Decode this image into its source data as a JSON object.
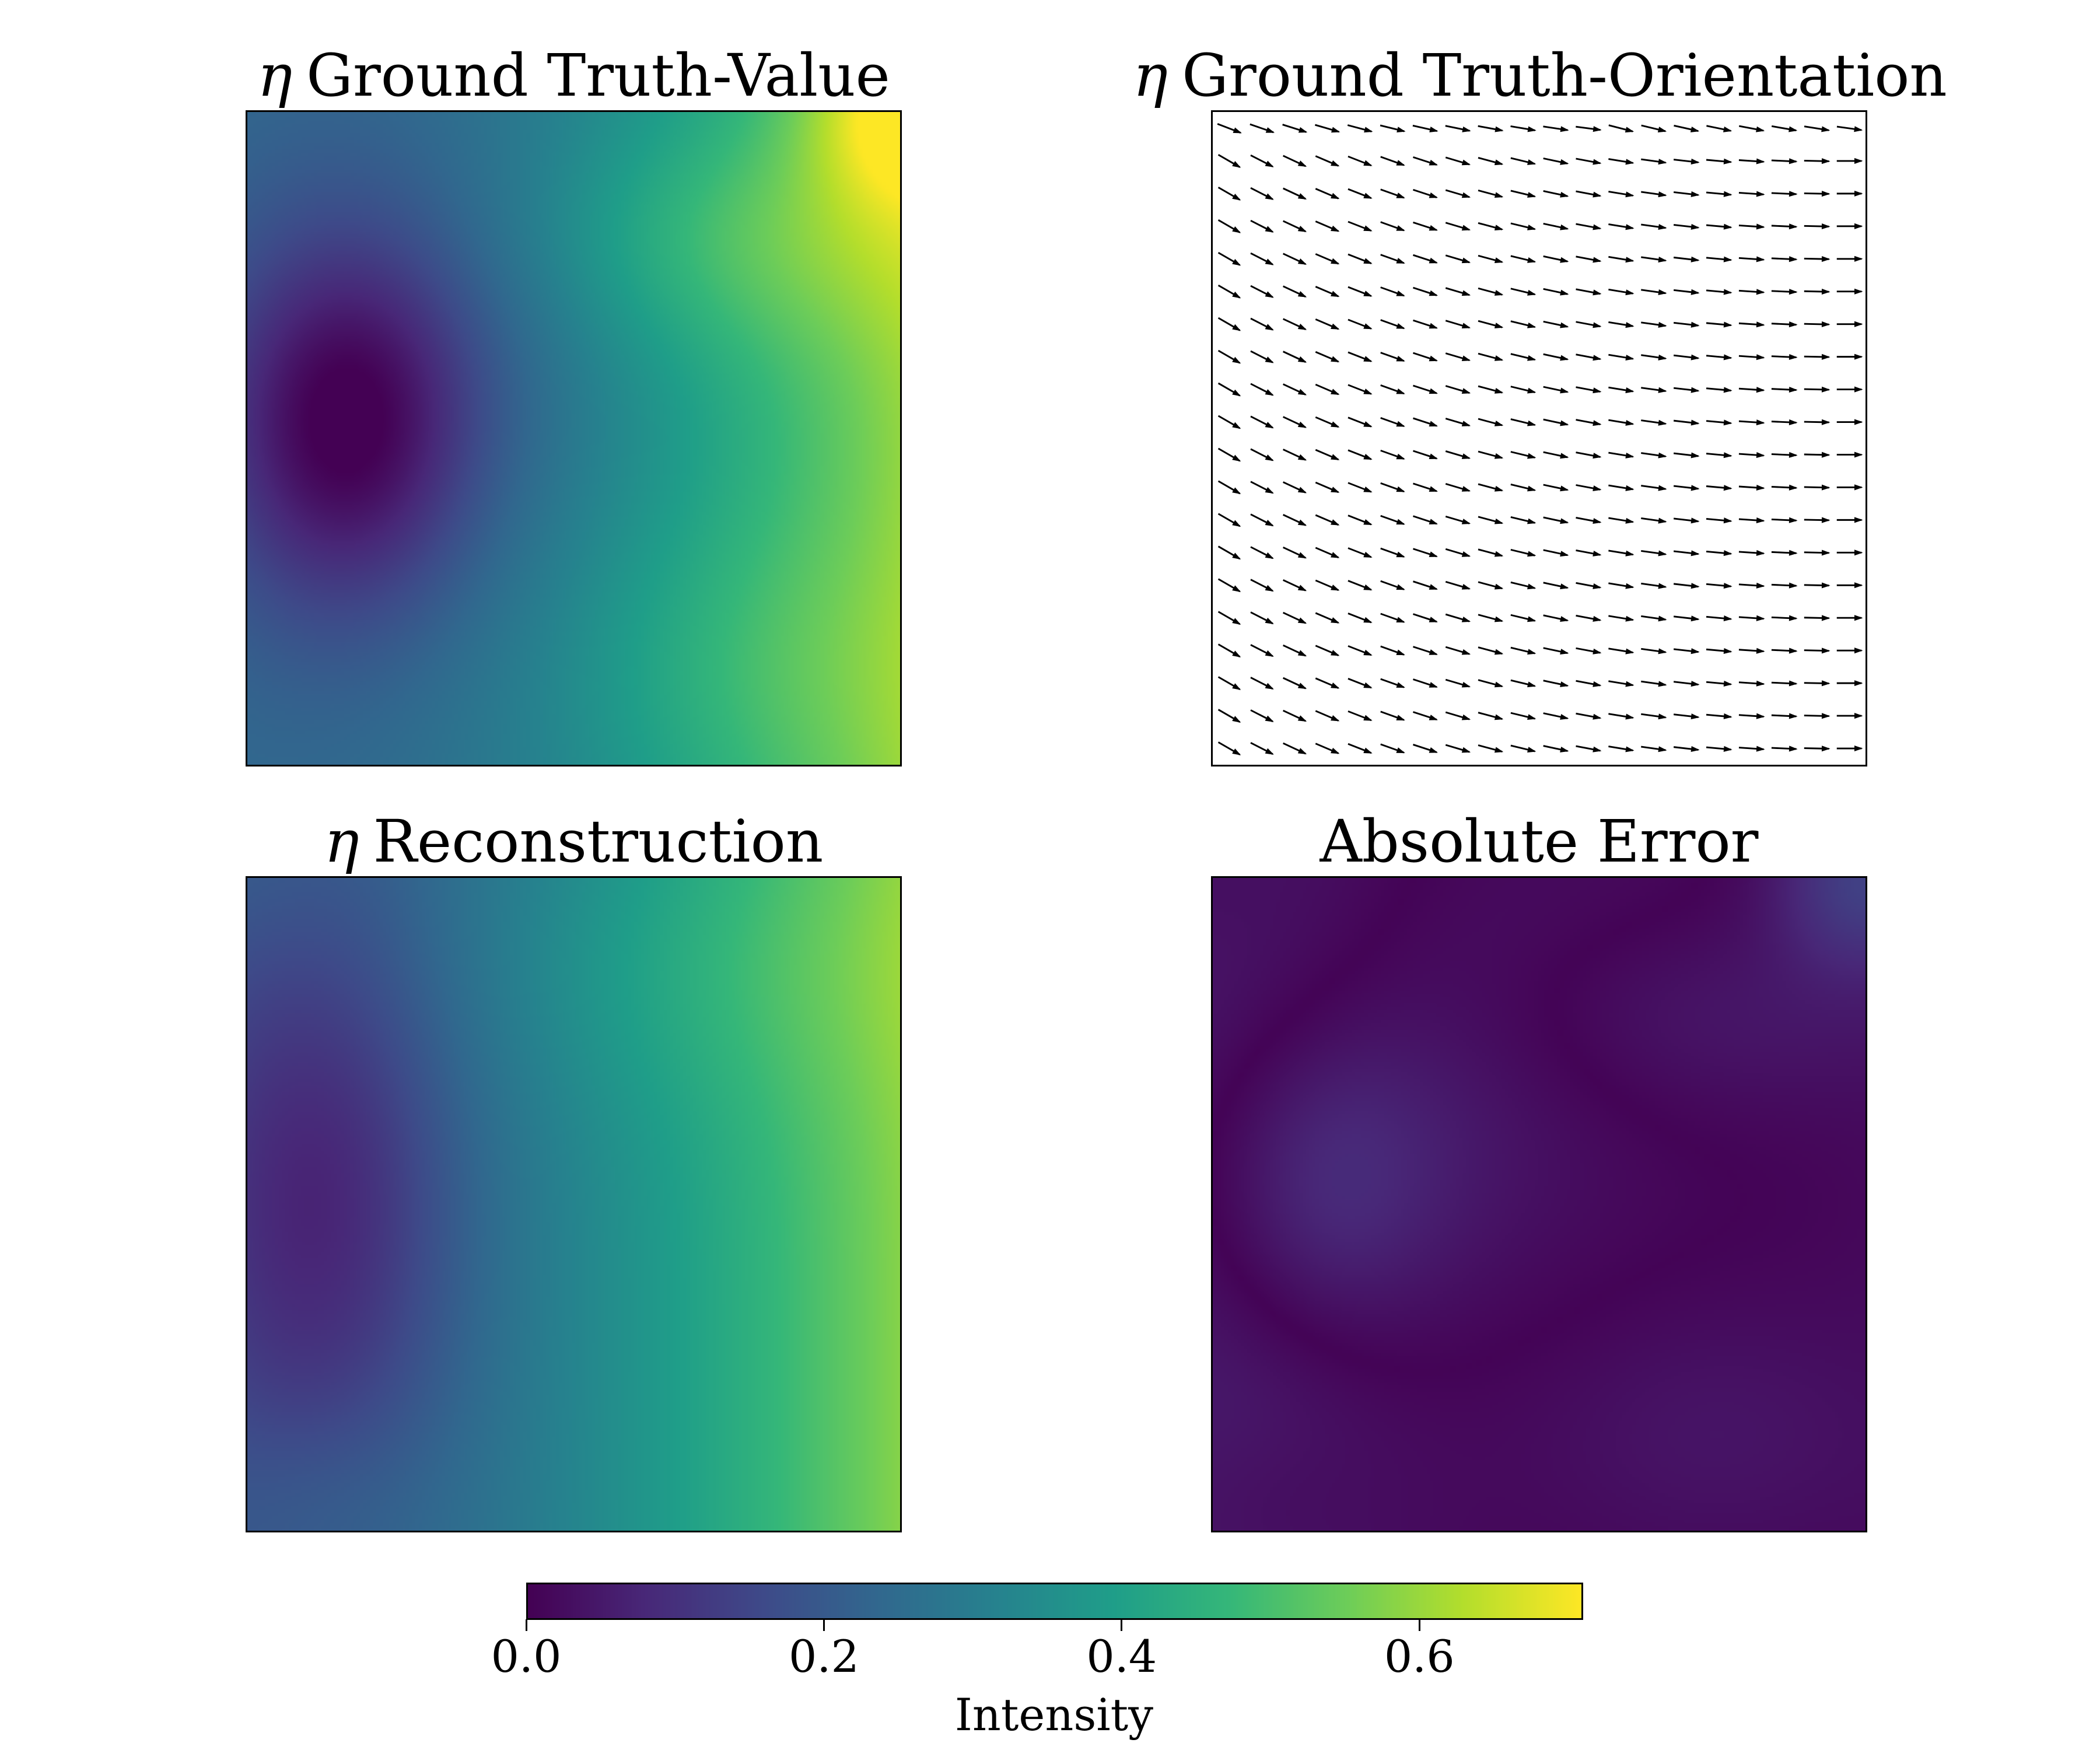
{
  "panels": {
    "gt_value": {
      "title_symbol": "η",
      "title_text": "Ground Truth-Value"
    },
    "gt_orientation": {
      "title_symbol": "η",
      "title_text": "Ground Truth-Orientation"
    },
    "reconstruction": {
      "title_symbol": "η",
      "title_text": "Reconstruction"
    },
    "abs_error": {
      "title_symbol": "",
      "title_text": "Absolute Error"
    }
  },
  "colorbar": {
    "label": "Intensity",
    "range": [
      0.0,
      0.71
    ],
    "ticks": [
      {
        "value": 0.0,
        "label": "0.0"
      },
      {
        "value": 0.2,
        "label": "0.2"
      },
      {
        "value": 0.4,
        "label": "0.4"
      },
      {
        "value": 0.6,
        "label": "0.6"
      }
    ],
    "colormap": "viridis",
    "orientation": "horizontal"
  },
  "chart_data": [
    {
      "type": "heatmap",
      "title": "η Ground Truth-Value",
      "colormap": "viridis",
      "value_range": [
        0.0,
        0.71
      ],
      "description_points": [
        {
          "x": 0.15,
          "y": 0.48,
          "value": 0.0
        },
        {
          "x": 0.99,
          "y": 0.02,
          "value": 0.71
        },
        {
          "x": 0.99,
          "y": 0.5,
          "value": 0.66
        },
        {
          "x": 0.7,
          "y": 0.18,
          "value": 0.4
        },
        {
          "x": 0.1,
          "y": 0.9,
          "value": 0.18
        }
      ]
    },
    {
      "type": "quiver",
      "title": "η Ground Truth-Orientation",
      "grid": [
        20,
        20
      ],
      "angle_left_deg": -30,
      "angle_right_deg": 0
    },
    {
      "type": "heatmap",
      "title": "η Reconstruction",
      "colormap": "viridis",
      "value_range": [
        0.0,
        0.71
      ]
    },
    {
      "type": "heatmap",
      "title": "Absolute Error",
      "colormap": "viridis",
      "value_range": [
        0.0,
        0.71
      ]
    }
  ]
}
